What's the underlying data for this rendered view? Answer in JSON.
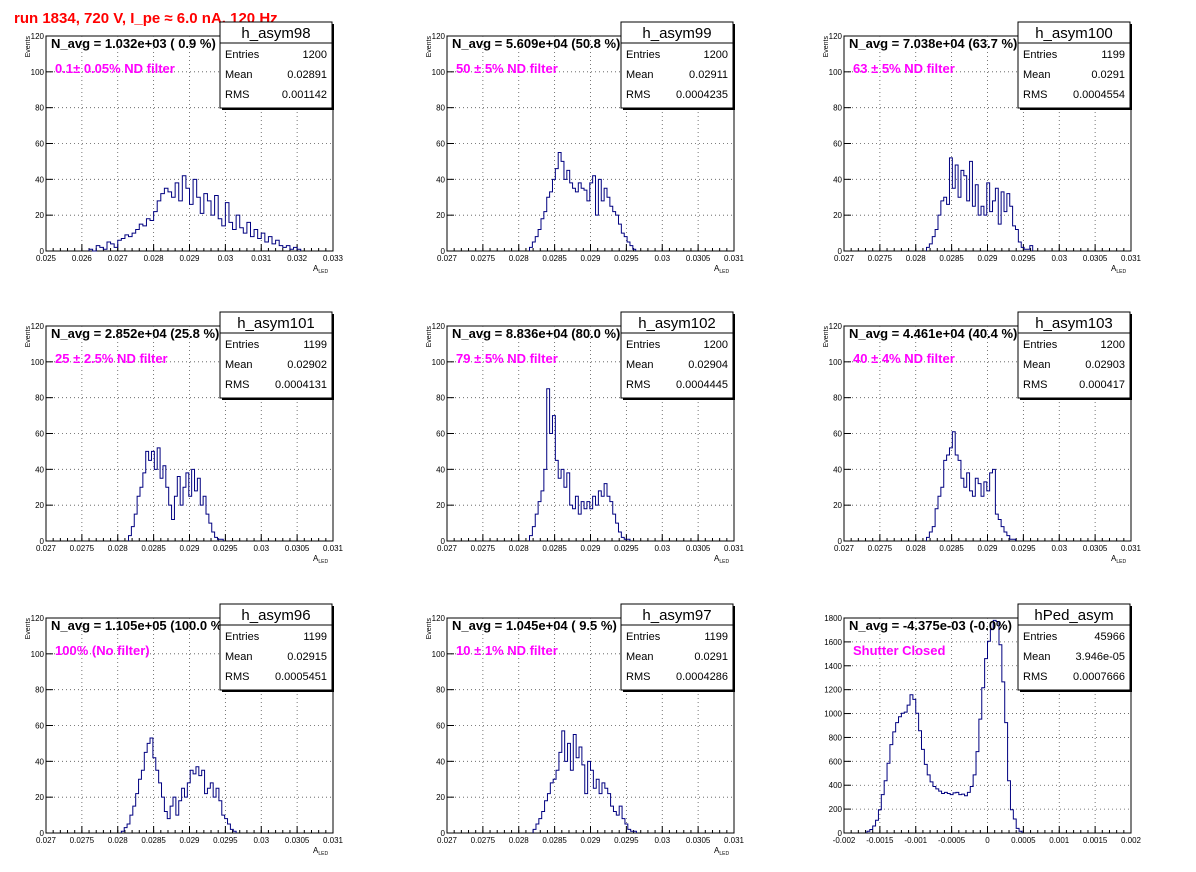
{
  "page_title": "run 1834,   720 V, I_pe ≈ 6.0 nA, 120 Hz",
  "stats_labels": {
    "entries": "Entries",
    "mean": "Mean",
    "rms": "RMS"
  },
  "colors": {
    "histogram": "#000080",
    "filter_text": "#ff00ff",
    "title": "#ff0000"
  },
  "chart_data": [
    {
      "type": "histogram",
      "name": "h_asym98",
      "navg": "N_avg = 1.032e+03 ( 0.9 %)",
      "filter": "0.1± 0.05% ND filter",
      "entries": "1200",
      "mean": "0.02891",
      "rms": "0.001142",
      "ylabel": "Events",
      "xlabel": "A",
      "xlabel_sub": "LED",
      "xlim": [
        0.025,
        0.033
      ],
      "ylim": [
        0,
        120
      ],
      "xticks": [
        "0.025",
        "0.026",
        "0.027",
        "0.028",
        "0.029",
        "0.03",
        "0.031",
        "0.032",
        "0.033"
      ],
      "yticks": [
        "0",
        "20",
        "40",
        "60",
        "80",
        "100",
        "120"
      ],
      "bins": {
        "x0": 0.0262,
        "w": 0.0001,
        "v": [
          1,
          0,
          3,
          2,
          1,
          5,
          4,
          2,
          6,
          7,
          9,
          8,
          10,
          12,
          15,
          14,
          18,
          17,
          22,
          28,
          32,
          35,
          33,
          30,
          38,
          28,
          42,
          35,
          26,
          40,
          30,
          21,
          32,
          28,
          20,
          31,
          18,
          14,
          27,
          16,
          12,
          20,
          13,
          10,
          16,
          8,
          12,
          7,
          10,
          5,
          8,
          4,
          6,
          3,
          2,
          3,
          1,
          2,
          1
        ]
      }
    },
    {
      "type": "histogram",
      "name": "h_asym99",
      "navg": "N_avg = 5.609e+04 (50.8 %)",
      "filter": "50 ± 5% ND filter",
      "entries": "1200",
      "mean": "0.02911",
      "rms": "0.0004235",
      "ylabel": "Events",
      "xlabel": "A",
      "xlabel_sub": "LED",
      "xlim": [
        0.027,
        0.031
      ],
      "ylim": [
        0,
        120
      ],
      "xticks": [
        "0.027",
        "0.0275",
        "0.028",
        "0.0285",
        "0.029",
        "0.0295",
        "0.03",
        "0.0305",
        "0.031"
      ],
      "yticks": [
        "0",
        "20",
        "40",
        "60",
        "80",
        "100",
        "120"
      ],
      "bins": {
        "x0": 0.02815,
        "w": 4e-05,
        "v": [
          2,
          5,
          8,
          12,
          18,
          22,
          30,
          33,
          40,
          46,
          55,
          50,
          40,
          45,
          38,
          35,
          33,
          38,
          35,
          34,
          28,
          38,
          42,
          20,
          40,
          28,
          35,
          30,
          25,
          22,
          20,
          15,
          10,
          8,
          5,
          3,
          1
        ]
      }
    },
    {
      "type": "histogram",
      "name": "h_asym100",
      "navg": "N_avg = 7.038e+04 (63.7 %)",
      "filter": "63 ± 5% ND filter",
      "entries": "1199",
      "mean": "0.0291",
      "rms": "0.0004554",
      "ylabel": "Events",
      "xlabel": "A",
      "xlabel_sub": "LED",
      "xlim": [
        0.027,
        0.031
      ],
      "ylim": [
        0,
        120
      ],
      "xticks": [
        "0.027",
        "0.0275",
        "0.028",
        "0.0285",
        "0.029",
        "0.0295",
        "0.03",
        "0.0305",
        "0.031"
      ],
      "yticks": [
        "0",
        "20",
        "40",
        "60",
        "80",
        "100",
        "120"
      ],
      "bins": {
        "x0": 0.02815,
        "w": 4e-05,
        "v": [
          2,
          4,
          8,
          12,
          20,
          28,
          30,
          26,
          52,
          35,
          48,
          30,
          45,
          42,
          28,
          50,
          25,
          37,
          20,
          25,
          20,
          38,
          22,
          28,
          35,
          15,
          33,
          22,
          32,
          25,
          14,
          12,
          5,
          2,
          1,
          1,
          3
        ]
      }
    },
    {
      "type": "histogram",
      "name": "h_asym101",
      "navg": "N_avg = 2.852e+04 (25.8 %)",
      "filter": "25 ± 2.5% ND filter",
      "entries": "1199",
      "mean": "0.02902",
      "rms": "0.0004131",
      "ylabel": "Events",
      "xlabel": "A",
      "xlabel_sub": "LED",
      "xlim": [
        0.027,
        0.031
      ],
      "ylim": [
        0,
        120
      ],
      "xticks": [
        "0.027",
        "0.0275",
        "0.028",
        "0.0285",
        "0.029",
        "0.0295",
        "0.03",
        "0.0305",
        "0.031"
      ],
      "yticks": [
        "0",
        "20",
        "40",
        "60",
        "80",
        "100",
        "120"
      ],
      "bins": {
        "x0": 0.02815,
        "w": 4e-05,
        "v": [
          3,
          8,
          15,
          25,
          30,
          38,
          50,
          45,
          50,
          40,
          52,
          35,
          42,
          30,
          20,
          12,
          25,
          36,
          20,
          30,
          38,
          25,
          40,
          28,
          35,
          20,
          25,
          15,
          10,
          5,
          2,
          1,
          1
        ]
      }
    },
    {
      "type": "histogram",
      "name": "h_asym102",
      "navg": "N_avg = 8.836e+04 (80.0 %)",
      "filter": "79 ± 5% ND filter",
      "entries": "1200",
      "mean": "0.02904",
      "rms": "0.0004445",
      "ylabel": "Events",
      "xlabel": "A",
      "xlabel_sub": "LED",
      "xlim": [
        0.027,
        0.031
      ],
      "ylim": [
        0,
        120
      ],
      "xticks": [
        "0.027",
        "0.0275",
        "0.028",
        "0.0285",
        "0.029",
        "0.0295",
        "0.03",
        "0.0305",
        "0.031"
      ],
      "yticks": [
        "0",
        "20",
        "40",
        "60",
        "80",
        "100",
        "120"
      ],
      "bins": {
        "x0": 0.02815,
        "w": 4e-05,
        "v": [
          3,
          8,
          15,
          22,
          28,
          40,
          85,
          60,
          70,
          45,
          35,
          40,
          30,
          38,
          20,
          18,
          25,
          15,
          22,
          18,
          22,
          18,
          25,
          20,
          28,
          25,
          32,
          25,
          22,
          15,
          10,
          5,
          2,
          1,
          1
        ]
      }
    },
    {
      "type": "histogram",
      "name": "h_asym103",
      "navg": "N_avg = 4.461e+04 (40.4 %)",
      "filter": "40 ± 4% ND filter",
      "entries": "1200",
      "mean": "0.02903",
      "rms": "0.000417",
      "ylabel": "Events",
      "xlabel": "A",
      "xlabel_sub": "LED",
      "xlim": [
        0.027,
        0.031
      ],
      "ylim": [
        0,
        120
      ],
      "xticks": [
        "0.027",
        "0.0275",
        "0.028",
        "0.0285",
        "0.029",
        "0.0295",
        "0.03",
        "0.0305",
        "0.031"
      ],
      "yticks": [
        "0",
        "20",
        "40",
        "60",
        "80",
        "100",
        "120"
      ],
      "bins": {
        "x0": 0.02815,
        "w": 4e-05,
        "v": [
          2,
          5,
          8,
          18,
          25,
          30,
          45,
          48,
          52,
          61,
          48,
          45,
          35,
          30,
          38,
          28,
          25,
          35,
          32,
          25,
          33,
          28,
          38,
          40,
          15,
          12,
          8,
          5,
          3,
          1,
          1
        ]
      }
    },
    {
      "type": "histogram",
      "name": "h_asym96",
      "navg": "N_avg = 1.105e+05 (100.0 %)",
      "filter": "100% (No filter)",
      "entries": "1199",
      "mean": "0.02915",
      "rms": "0.0005451",
      "ylabel": "Events",
      "xlabel": "A",
      "xlabel_sub": "LED",
      "xlim": [
        0.027,
        0.031
      ],
      "ylim": [
        0,
        120
      ],
      "xticks": [
        "0.027",
        "0.0275",
        "0.028",
        "0.0285",
        "0.029",
        "0.0295",
        "0.03",
        "0.0305",
        "0.031"
      ],
      "yticks": [
        "0",
        "20",
        "40",
        "60",
        "80",
        "100",
        "120"
      ],
      "bins": {
        "x0": 0.02805,
        "w": 4e-05,
        "v": [
          1,
          3,
          5,
          10,
          15,
          22,
          30,
          35,
          45,
          50,
          53,
          42,
          35,
          28,
          20,
          12,
          8,
          15,
          20,
          10,
          18,
          25,
          20,
          28,
          35,
          33,
          37,
          32,
          35,
          22,
          25,
          28,
          20,
          25,
          18,
          10,
          8,
          5,
          2,
          1
        ]
      }
    },
    {
      "type": "histogram",
      "name": "h_asym97",
      "navg": "N_avg = 1.045e+04 ( 9.5 %)",
      "filter": "10 ± 1% ND filter",
      "entries": "1199",
      "mean": "0.0291",
      "rms": "0.0004286",
      "ylabel": "Events",
      "xlabel": "A",
      "xlabel_sub": "LED",
      "xlim": [
        0.027,
        0.031
      ],
      "ylim": [
        0,
        120
      ],
      "xticks": [
        "0.027",
        "0.0275",
        "0.028",
        "0.0285",
        "0.029",
        "0.0295",
        "0.03",
        "0.0305",
        "0.031"
      ],
      "yticks": [
        "0",
        "20",
        "40",
        "60",
        "80",
        "100",
        "120"
      ],
      "bins": {
        "x0": 0.0282,
        "w": 4e-05,
        "v": [
          2,
          5,
          8,
          12,
          18,
          22,
          28,
          30,
          35,
          45,
          57,
          40,
          50,
          35,
          55,
          42,
          48,
          38,
          22,
          40,
          35,
          25,
          30,
          22,
          28,
          25,
          22,
          15,
          12,
          10,
          15,
          8,
          5,
          2,
          1,
          1
        ]
      }
    },
    {
      "type": "histogram",
      "name": "hPed_asym",
      "navg": "N_avg = -4.375e-03 (-0.0%)",
      "filter": "Shutter Closed",
      "entries": "45966",
      "mean": "3.946e-05",
      "rms": "0.0007666",
      "ylabel": "",
      "xlabel": "",
      "xlabel_sub": "",
      "xlim": [
        -0.002,
        0.002
      ],
      "ylim": [
        0,
        1850
      ],
      "xticks": [
        "-0.002",
        "-0.0015",
        "-0.001",
        "-0.0005",
        "0",
        "0.0005",
        "0.001",
        "0.0015",
        "0.002"
      ],
      "yticks": [
        "0",
        "200",
        "400",
        "600",
        "800",
        "1000",
        "1200",
        "1400",
        "1600",
        "1800"
      ],
      "bins": {
        "x0": -0.00168,
        "w": 4e-05,
        "v": [
          15,
          30,
          60,
          110,
          200,
          330,
          450,
          600,
          760,
          870,
          950,
          1000,
          1030,
          1040,
          1100,
          1190,
          1150,
          1030,
          880,
          720,
          590,
          500,
          440,
          400,
          380,
          360,
          340,
          350,
          340,
          330,
          345,
          350,
          330,
          335,
          320,
          350,
          400,
          500,
          700,
          980,
          1250,
          1500,
          1650,
          1750,
          1830,
          1820,
          1620,
          1300,
          950,
          450,
          200,
          120,
          40,
          15
        ]
      }
    }
  ]
}
